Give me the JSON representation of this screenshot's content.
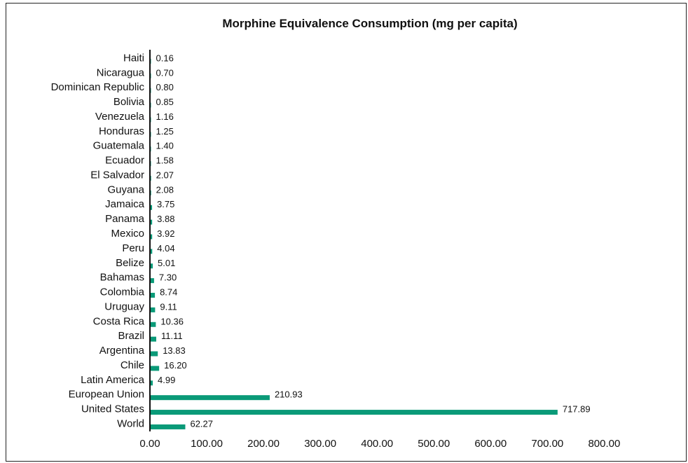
{
  "chart_data": {
    "type": "bar",
    "orientation": "horizontal",
    "title": "Morphine Equivalence Consumption (mg per capita)",
    "xlabel": "",
    "ylabel": "",
    "xlim": [
      0,
      800
    ],
    "x_ticks": [
      "0.00",
      "100.00",
      "200.00",
      "300.00",
      "400.00",
      "500.00",
      "600.00",
      "700.00",
      "800.00"
    ],
    "grid": false,
    "legend": "none",
    "bar_color": "#0a9a78",
    "categories": [
      "Haiti",
      "Nicaragua",
      "Dominican Republic",
      "Bolivia",
      "Venezuela",
      "Honduras",
      "Guatemala",
      "Ecuador",
      "El Salvador",
      "Guyana",
      "Jamaica",
      "Panama",
      "Mexico",
      "Peru",
      "Belize",
      "Bahamas",
      "Colombia",
      "Uruguay",
      "Costa Rica",
      "Brazil",
      "Argentina",
      "Chile",
      "Latin America",
      "European Union",
      "United States",
      "World"
    ],
    "values": [
      0.16,
      0.7,
      0.8,
      0.85,
      1.16,
      1.25,
      1.4,
      1.58,
      2.07,
      2.08,
      3.75,
      3.88,
      3.92,
      4.04,
      5.01,
      7.3,
      8.74,
      9.11,
      10.36,
      11.11,
      13.83,
      16.2,
      4.99,
      210.93,
      717.89,
      62.27
    ],
    "value_labels": [
      "0.16",
      "0.70",
      "0.80",
      "0.85",
      "1.16",
      "1.25",
      "1.40",
      "1.58",
      "2.07",
      "2.08",
      "3.75",
      "3.88",
      "3.92",
      "4.04",
      "5.01",
      "7.30",
      "8.74",
      "9.11",
      "10.36",
      "11.11",
      "13.83",
      "16.20",
      "4.99",
      "210.93",
      "717.89",
      "62.27"
    ]
  }
}
